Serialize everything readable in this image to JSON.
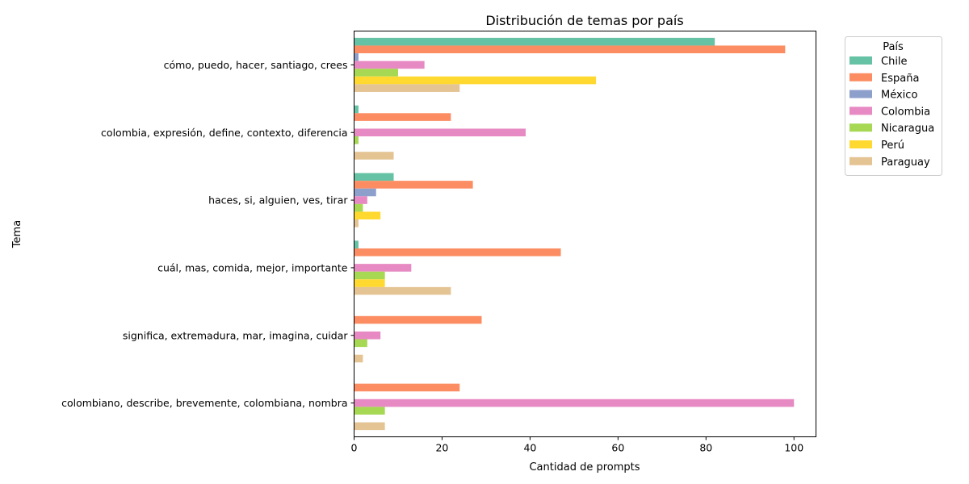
{
  "chart_data": {
    "type": "bar",
    "orientation": "horizontal",
    "title": "Distribución de temas por país",
    "xlabel": "Cantidad de prompts",
    "ylabel": "Tema",
    "xlim": [
      0,
      105
    ],
    "xticks": [
      0,
      20,
      40,
      60,
      80,
      100
    ],
    "grid": false,
    "legend_title": "País",
    "legend_position": "outside-top-right",
    "categories": [
      "cómo, puedo, hacer, santiago, crees",
      "colombia, expresión, define, contexto, diferencia",
      "haces, si, alguien, ves, tirar",
      "cuál, mas, comida, mejor, importante",
      "significa, extremadura, mar, imagina, cuidar",
      "colombiano, describe, brevemente, colombiana, nombra"
    ],
    "series": [
      {
        "name": "Chile",
        "color": "#66c2a5",
        "values": [
          82,
          1,
          9,
          1,
          0,
          0
        ]
      },
      {
        "name": "España",
        "color": "#fc8d62",
        "values": [
          98,
          22,
          27,
          47,
          29,
          24
        ]
      },
      {
        "name": "México",
        "color": "#8da0cb",
        "values": [
          1,
          0,
          5,
          0,
          0,
          0
        ]
      },
      {
        "name": "Colombia",
        "color": "#e78ac3",
        "values": [
          16,
          39,
          3,
          13,
          6,
          100
        ]
      },
      {
        "name": "Nicaragua",
        "color": "#a6d854",
        "values": [
          10,
          1,
          2,
          7,
          3,
          7
        ]
      },
      {
        "name": "Perú",
        "color": "#ffd92f",
        "values": [
          55,
          0,
          6,
          7,
          0,
          0
        ]
      },
      {
        "name": "Paraguay",
        "color": "#e5c494",
        "values": [
          24,
          9,
          1,
          22,
          2,
          7
        ]
      }
    ]
  }
}
